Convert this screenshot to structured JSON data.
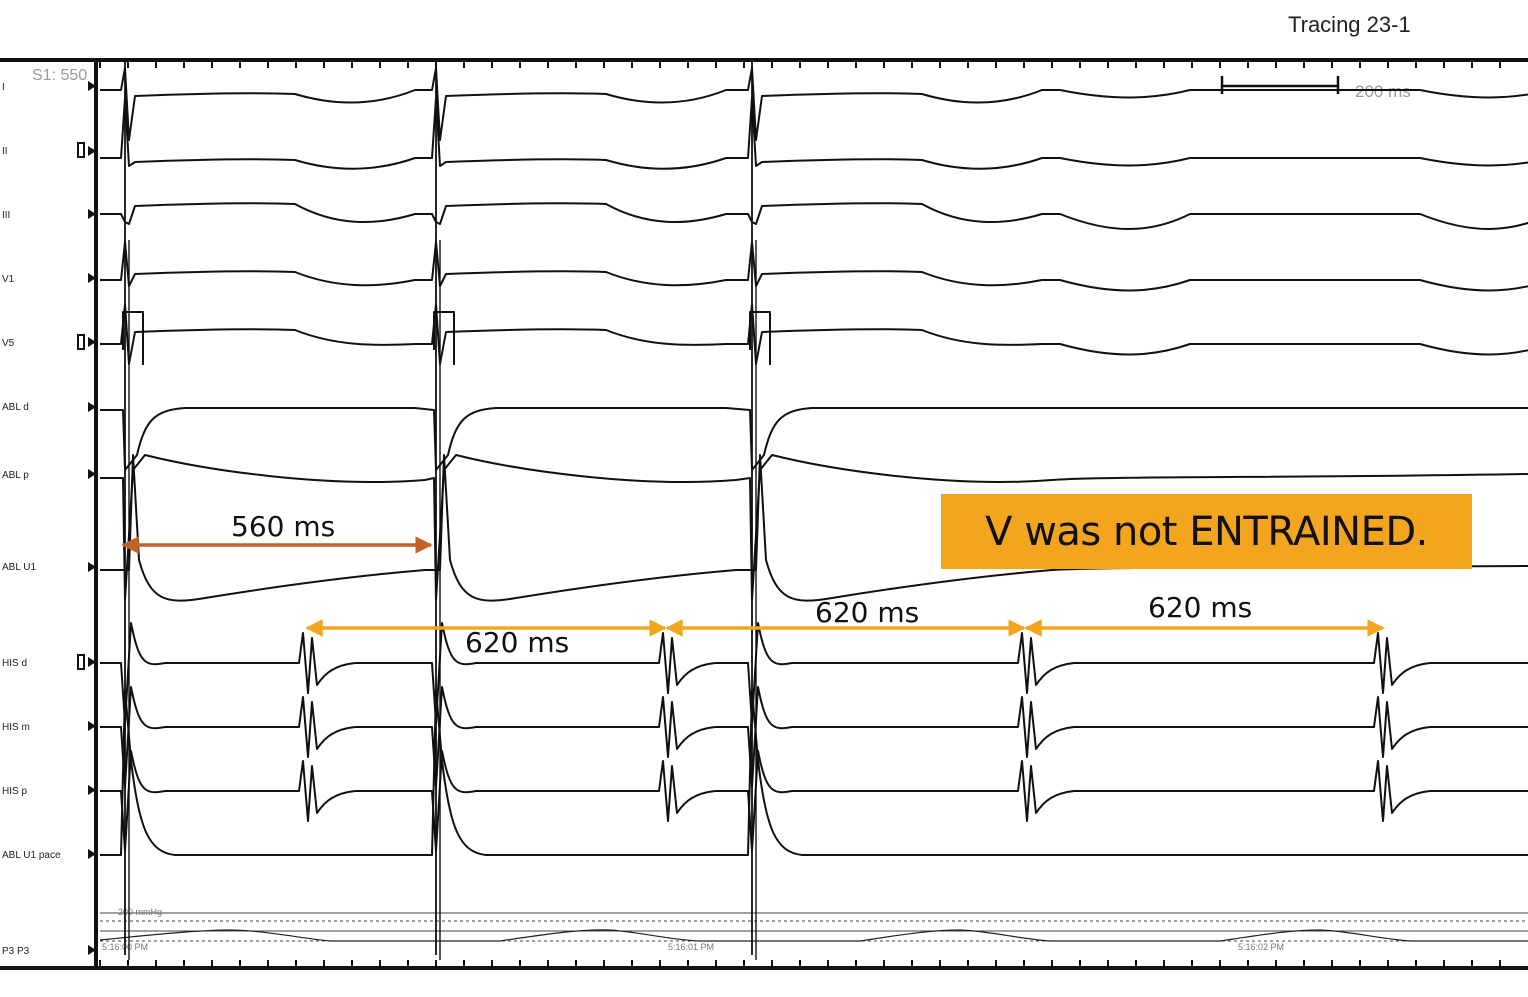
{
  "page_title": "Tracing 23-1",
  "pacing_label": "S1: 550",
  "scale_bar_label": "200 ms",
  "channels": [
    "I",
    "II",
    "III",
    "V1",
    "V5",
    "ABL d",
    "ABL p",
    "ABL U1",
    "HIS d",
    "HIS m",
    "HIS p",
    "ABL U1 pace",
    "P3 P3"
  ],
  "pressure_scale_label": "200 mmHg",
  "timestamps": [
    "5:16:00 PM",
    "5:16:01 PM",
    "5:16:02 PM"
  ],
  "annotation": "V was not ENTRAINED.",
  "intervals": [
    {
      "label": "560 ms",
      "color": "#c0622a"
    },
    {
      "label": "620 ms",
      "color": "#f4a51f"
    },
    {
      "label": "620 ms",
      "color": "#f4a51f"
    },
    {
      "label": "620 ms",
      "color": "#f4a51f"
    }
  ]
}
